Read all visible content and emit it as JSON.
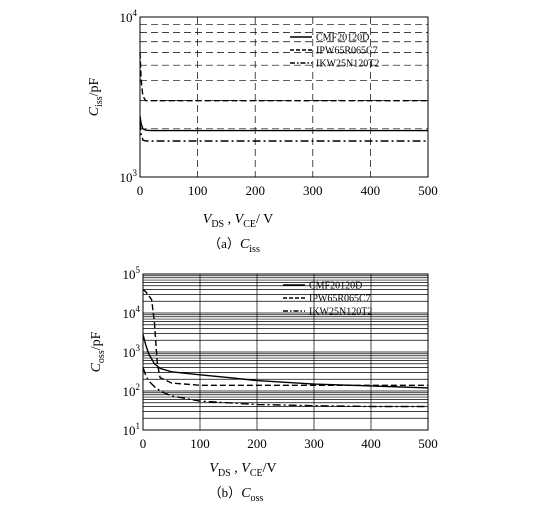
{
  "chart_data": [
    {
      "type": "line",
      "caption": {
        "prefix": "（a）",
        "var": "C",
        "sub": "iss"
      },
      "xlabel": {
        "v1": "V",
        "s1": "DS",
        "sep": " , ",
        "v2": "V",
        "s2": "CE",
        "unit": "/ V"
      },
      "ylabel": {
        "var": "C",
        "sub": "iss",
        "unit": "/pF"
      },
      "x_ticks": [
        "0",
        "100",
        "200",
        "300",
        "400",
        "500"
      ],
      "y_ticks": [
        {
          "base": "10",
          "exp": "3"
        },
        {
          "base": "10",
          "exp": "4"
        }
      ],
      "xlim": [
        0,
        500
      ],
      "ylim": [
        1000,
        10000
      ],
      "y_scale": "log",
      "grid": true,
      "legend_position": "top-right",
      "series": [
        {
          "name": "CMF20120D",
          "style": "solid",
          "x": [
            0,
            2,
            5,
            10,
            20,
            50,
            100,
            200,
            300,
            400,
            500
          ],
          "y": [
            2400,
            2150,
            2000,
            1960,
            1950,
            1950,
            1950,
            1950,
            1950,
            1950,
            1950
          ]
        },
        {
          "name": "IPW65R065C7",
          "style": "dashed",
          "x": [
            0,
            2,
            5,
            10,
            20,
            50,
            100,
            200,
            300,
            400,
            500
          ],
          "y": [
            6000,
            4000,
            3200,
            3000,
            3000,
            3000,
            3000,
            3000,
            3000,
            3000,
            3000
          ]
        },
        {
          "name": "IKW25N120T2",
          "style": "dashdot",
          "x": [
            0,
            2,
            5,
            10,
            20,
            50,
            100,
            200,
            300,
            400,
            500
          ],
          "y": [
            2200,
            1850,
            1700,
            1680,
            1680,
            1680,
            1680,
            1680,
            1680,
            1680,
            1680
          ]
        }
      ]
    },
    {
      "type": "line",
      "caption": {
        "prefix": "（b）",
        "var": "C",
        "sub": "oss"
      },
      "xlabel": {
        "v1": "V",
        "s1": "DS",
        "sep": " ,  ",
        "v2": "V",
        "s2": "CE",
        "unit": "/V"
      },
      "ylabel": {
        "var": "C",
        "sub": "oss",
        "unit": "/pF"
      },
      "x_ticks": [
        "0",
        "100",
        "200",
        "300",
        "400",
        "500"
      ],
      "y_ticks": [
        {
          "base": "10",
          "exp": "1"
        },
        {
          "base": "10",
          "exp": "2"
        },
        {
          "base": "10",
          "exp": "3"
        },
        {
          "base": "10",
          "exp": "4"
        },
        {
          "base": "10",
          "exp": "5"
        }
      ],
      "xlim": [
        0,
        500
      ],
      "ylim": [
        10,
        100000
      ],
      "y_scale": "log",
      "grid": true,
      "legend_position": "top-right",
      "series": [
        {
          "name": "CMF20120D",
          "style": "solid",
          "x": [
            0,
            5,
            10,
            20,
            30,
            50,
            100,
            150,
            200,
            300,
            400,
            500
          ],
          "y": [
            2800,
            1500,
            900,
            500,
            380,
            310,
            260,
            220,
            185,
            150,
            135,
            120
          ]
        },
        {
          "name": "IPW65R065C7",
          "style": "dashed",
          "x": [
            0,
            5,
            10,
            15,
            20,
            25,
            30,
            50,
            100,
            200,
            300,
            400,
            500
          ],
          "y": [
            40000,
            35000,
            28000,
            22000,
            6000,
            500,
            220,
            160,
            140,
            140,
            140,
            140,
            140
          ]
        },
        {
          "name": "IKW25N120T2",
          "style": "dashdot",
          "x": [
            0,
            5,
            10,
            20,
            30,
            50,
            100,
            200,
            300,
            400,
            500
          ],
          "y": [
            400,
            250,
            180,
            130,
            100,
            75,
            55,
            45,
            42,
            40,
            40
          ]
        }
      ]
    }
  ]
}
